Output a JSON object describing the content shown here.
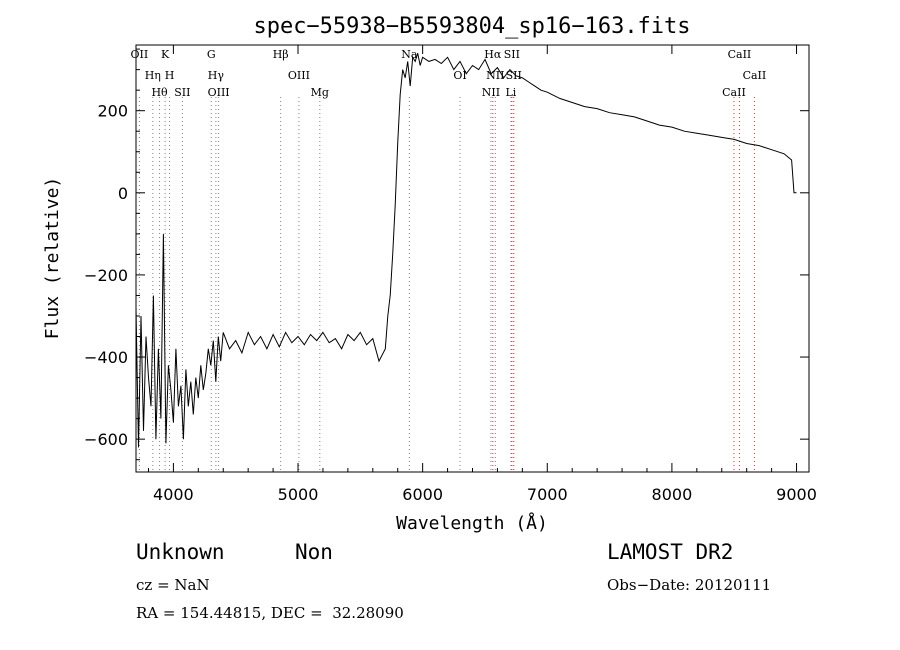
{
  "chart_data": {
    "type": "line",
    "title": "spec−55938−B5593804_sp16−163.fits",
    "xlabel": "Wavelength (Å)",
    "ylabel": "Flux (relative)",
    "xlim": [
      3700,
      9100
    ],
    "ylim": [
      -680,
      360
    ],
    "xticks": [
      4000,
      5000,
      6000,
      7000,
      8000,
      9000
    ],
    "yticks": [
      -600,
      -400,
      -200,
      0,
      200
    ],
    "series": [
      {
        "color": "#000000",
        "x": [
          3700,
          3720,
          3740,
          3760,
          3780,
          3800,
          3820,
          3840,
          3860,
          3880,
          3900,
          3920,
          3940,
          3960,
          3980,
          4000,
          4020,
          4040,
          4060,
          4080,
          4100,
          4120,
          4140,
          4160,
          4180,
          4200,
          4220,
          4240,
          4260,
          4280,
          4300,
          4320,
          4340,
          4360,
          4380,
          4400,
          4450,
          4500,
          4550,
          4600,
          4650,
          4700,
          4750,
          4800,
          4850,
          4900,
          4950,
          5000,
          5050,
          5100,
          5150,
          5200,
          5250,
          5300,
          5350,
          5400,
          5450,
          5500,
          5550,
          5600,
          5650,
          5700,
          5720,
          5740,
          5760,
          5780,
          5800,
          5820,
          5840,
          5860,
          5880,
          5900,
          5920,
          5940,
          5960,
          5980,
          6000,
          6050,
          6100,
          6150,
          6200,
          6250,
          6300,
          6350,
          6400,
          6450,
          6500,
          6550,
          6600,
          6650,
          6700,
          6750,
          6800,
          6850,
          6900,
          6950,
          7000,
          7100,
          7200,
          7300,
          7400,
          7500,
          7600,
          7700,
          7800,
          7900,
          8000,
          8100,
          8200,
          8300,
          8400,
          8500,
          8600,
          8700,
          8800,
          8900,
          8960,
          8980,
          9000
        ],
        "y": [
          -280,
          -620,
          -300,
          -580,
          -350,
          -450,
          -520,
          -250,
          -600,
          -380,
          -550,
          -100,
          -610,
          -420,
          -480,
          -560,
          -380,
          -520,
          -470,
          -600,
          -430,
          -520,
          -460,
          -540,
          -450,
          -500,
          -420,
          -480,
          -440,
          -380,
          -420,
          -360,
          -460,
          -350,
          -410,
          -340,
          -380,
          -360,
          -390,
          -340,
          -370,
          -350,
          -380,
          -345,
          -375,
          -340,
          -365,
          -350,
          -370,
          -345,
          -360,
          -340,
          -365,
          -355,
          -380,
          -345,
          -360,
          -340,
          -370,
          -355,
          -410,
          -380,
          -300,
          -250,
          -150,
          -30,
          120,
          240,
          300,
          280,
          320,
          260,
          330,
          320,
          340,
          310,
          330,
          320,
          325,
          315,
          330,
          300,
          320,
          290,
          310,
          300,
          325,
          290,
          305,
          280,
          300,
          285,
          280,
          270,
          260,
          250,
          245,
          230,
          220,
          210,
          205,
          195,
          190,
          185,
          175,
          165,
          160,
          150,
          145,
          140,
          135,
          130,
          120,
          115,
          105,
          95,
          80,
          0,
          0
        ]
      }
    ],
    "lines": [
      {
        "w": 3727,
        "labels": [
          "OII"
        ],
        "color": "#808080"
      },
      {
        "w": 3835,
        "labels": [
          "Hη"
        ],
        "color": "#808080"
      },
      {
        "w": 3889,
        "labels": [
          "Hθ"
        ],
        "color": "#808080"
      },
      {
        "w": 3934,
        "labels": [
          "K"
        ],
        "color": "#808080"
      },
      {
        "w": 3969,
        "labels": [
          "H"
        ],
        "color": "#808080"
      },
      {
        "w": 4072,
        "labels": [
          "SII"
        ],
        "color": "#808080"
      },
      {
        "w": 4304,
        "labels": [
          "G"
        ],
        "color": "#808080"
      },
      {
        "w": 4341,
        "labels": [
          "Hγ"
        ],
        "color": "#808080"
      },
      {
        "w": 4363,
        "labels": [
          "OIII"
        ],
        "color": "#808080"
      },
      {
        "w": 4861,
        "labels": [
          "Hβ"
        ],
        "color": "#808080"
      },
      {
        "w": 5007,
        "labels": [
          "OIII"
        ],
        "color": "#808080"
      },
      {
        "w": 5175,
        "labels": [
          "Mg"
        ],
        "color": "#808080"
      },
      {
        "w": 5893,
        "labels": [
          "Na"
        ],
        "color": "#808080"
      },
      {
        "w": 6300,
        "labels": [
          "OI"
        ],
        "color": "#808080"
      },
      {
        "w": 6548,
        "labels": [
          "NII"
        ],
        "color": "#808080"
      },
      {
        "w": 6563,
        "labels": [
          "Hα"
        ],
        "color": "#cc3333"
      },
      {
        "w": 6583,
        "labels": [
          "NII"
        ],
        "color": "#808080"
      },
      {
        "w": 6708,
        "labels": [
          "Li"
        ],
        "color": "#808080"
      },
      {
        "w": 6716,
        "labels": [
          "SII"
        ],
        "color": "#cc3333"
      },
      {
        "w": 6731,
        "labels": [
          "SII"
        ],
        "color": "#cc3333"
      },
      {
        "w": 8498,
        "labels": [
          "CaII"
        ],
        "color": "#cc3333"
      },
      {
        "w": 8542,
        "labels": [
          "CaII"
        ],
        "color": "#cc3333"
      },
      {
        "w": 8662,
        "labels": [
          "CaII"
        ],
        "color": "#cc3333"
      }
    ]
  },
  "info": {
    "class": "Unknown",
    "subclass": "Non",
    "survey": "LAMOST DR2",
    "cz": "cz = NaN",
    "obs_date": "Obs−Date: 20120111",
    "coords": "RA = 154.44815, DEC =  32.28090"
  }
}
